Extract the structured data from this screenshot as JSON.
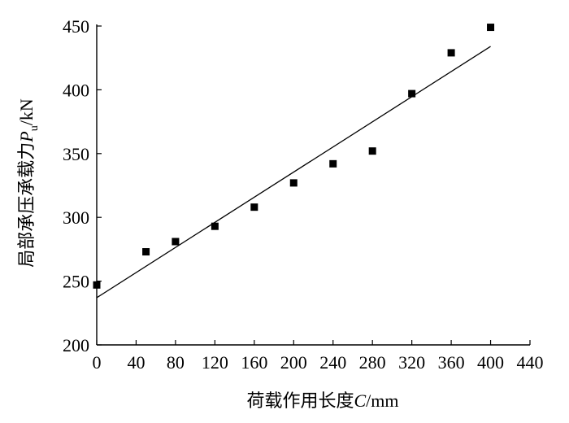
{
  "chart_data": {
    "type": "scatter",
    "title": "",
    "xlabel": "荷载作用长度C/mm",
    "ylabel": "局部承压承载力P_u/kN",
    "xlabel_parts": {
      "main": "荷载作用长度",
      "var": "C",
      "unit": "/mm"
    },
    "ylabel_parts": {
      "main": "局部承压承载力",
      "var": "P",
      "sub": "u",
      "unit": "/kN"
    },
    "xlim": [
      0,
      440
    ],
    "ylim": [
      200,
      450
    ],
    "xticks": [
      0,
      40,
      80,
      120,
      160,
      200,
      240,
      280,
      320,
      360,
      400,
      440
    ],
    "yticks": [
      200,
      250,
      300,
      350,
      400,
      450
    ],
    "grid": false,
    "series": [
      {
        "x": [
          0,
          50,
          80,
          120,
          160,
          200,
          240,
          280,
          320,
          360,
          400
        ],
        "y": [
          247,
          273,
          281,
          293,
          308,
          327,
          342,
          352,
          397,
          429,
          449
        ],
        "marker": "square",
        "color": "#000000"
      }
    ],
    "fit_line": {
      "x": [
        0,
        400
      ],
      "y": [
        237,
        434
      ],
      "color": "#000000"
    }
  }
}
